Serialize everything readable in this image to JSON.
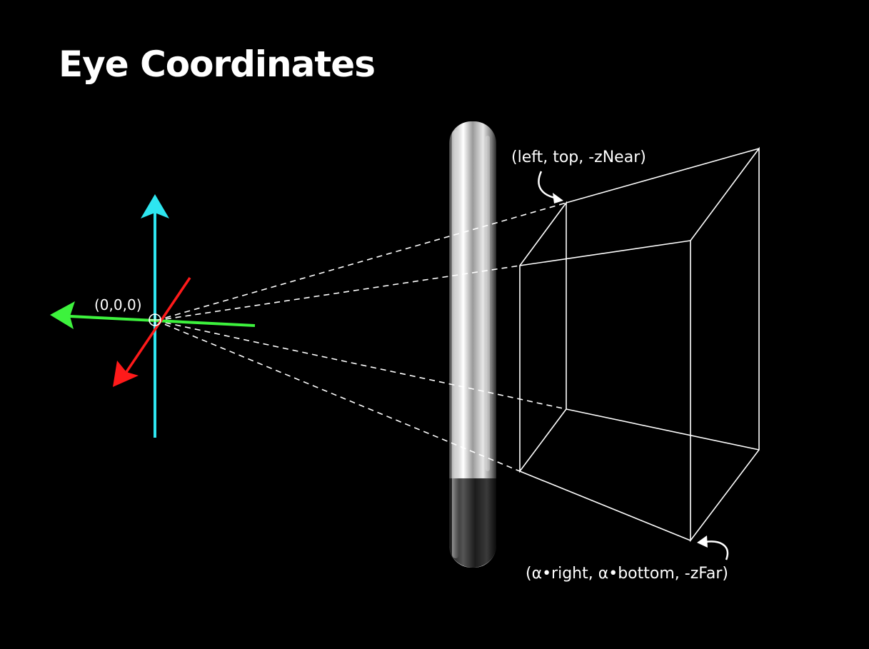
{
  "title": "Eye Coordinates",
  "labels": {
    "origin": "(0,0,0)",
    "near_corner": "(left, top, -zNear)",
    "far_corner": "(α•right, α•bottom, -zFar)"
  },
  "colors": {
    "background": "#000000",
    "y_axis": "#2ee6f0",
    "x_axis": "#3df23d",
    "z_axis": "#ff1a1a",
    "frustum": "#ffffff",
    "device_body": "#c8c8c8",
    "device_base": "#141414"
  },
  "icons": {
    "near_pointer": "curved-arrow-icon",
    "far_pointer": "curved-arrow-icon",
    "origin_marker": "circle-crosshair-icon"
  }
}
